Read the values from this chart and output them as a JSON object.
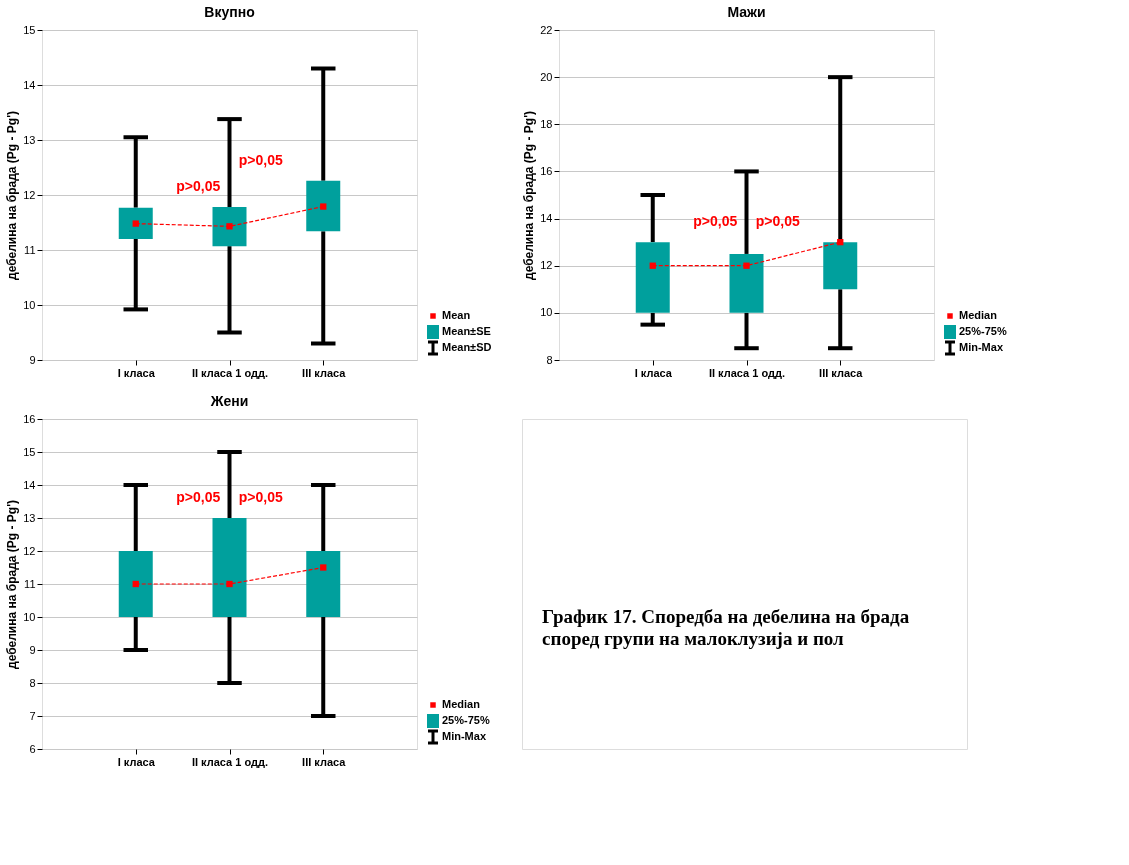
{
  "chart_data": [
    {
      "type": "box",
      "title": "Вкупно",
      "ylabel": "дебелина на брада (Pg - Pg')",
      "categories": [
        "I класа",
        "II класа 1 одд.",
        "III класа"
      ],
      "ylim": [
        9,
        15
      ],
      "yticks": [
        9,
        10,
        11,
        12,
        13,
        14,
        15
      ],
      "grid": "y",
      "legend": "bottom right",
      "series": [
        {
          "type": "box",
          "name": "Mean±SE",
          "color": "#00a09d",
          "boxes": [
            {
              "low": 9.92,
              "q1": 11.2,
              "median": 11.48,
              "q3": 11.77,
              "high": 13.05
            },
            {
              "low": 9.5,
              "q1": 11.07,
              "median": 11.43,
              "q3": 11.78,
              "high": 13.38
            },
            {
              "low": 9.3,
              "q1": 11.34,
              "median": 11.79,
              "q3": 12.26,
              "high": 14.3
            }
          ]
        },
        {
          "type": "line",
          "name": "Mean",
          "color": "#ff0000",
          "line_style": "dashed",
          "x": [
            "I класа",
            "II класа 1 одд.",
            "III класа"
          ],
          "values": [
            11.48,
            11.43,
            11.79
          ]
        }
      ],
      "annotations": [
        "p>0,05",
        "p>0,05",
        "Mean±SD"
      ]
    },
    {
      "type": "box",
      "title": "Мажи",
      "ylabel": "дебелина на брада (Pg - Pg')",
      "categories": [
        "I класа",
        "II класа 1 одд.",
        "III класа"
      ],
      "ylim": [
        8,
        22
      ],
      "yticks": [
        8,
        10,
        12,
        14,
        16,
        18,
        20,
        22
      ],
      "grid": "y",
      "legend": "bottom right",
      "series": [
        {
          "type": "box",
          "name": "25%-75%",
          "color": "#00a09d",
          "boxes": [
            {
              "low": 9.5,
              "q1": 10,
              "median": 12,
              "q3": 13,
              "high": 15
            },
            {
              "low": 8.5,
              "q1": 10,
              "median": 12,
              "q3": 12.5,
              "high": 16
            },
            {
              "low": 8.5,
              "q1": 11,
              "median": 13,
              "q3": 13,
              "high": 20
            }
          ]
        },
        {
          "type": "line",
          "name": "Median",
          "color": "#ff0000",
          "line_style": "dashed",
          "x": [
            "I класа",
            "II класа 1 одд.",
            "III класа"
          ],
          "values": [
            12,
            12,
            13
          ]
        }
      ],
      "annotations": [
        "p>0,05",
        "p>0,05",
        "Min-Max"
      ]
    },
    {
      "type": "box",
      "title": "Жени",
      "ylabel": "дебелина на брада (Pg - Pg')",
      "categories": [
        "I класа",
        "II класа 1 одд.",
        "III класа"
      ],
      "ylim": [
        6,
        16
      ],
      "yticks": [
        6,
        7,
        8,
        9,
        10,
        11,
        12,
        13,
        14,
        15,
        16
      ],
      "grid": "y",
      "legend": "bottom right",
      "series": [
        {
          "type": "box",
          "name": "25%-75%",
          "color": "#00a09d",
          "boxes": [
            {
              "low": 9,
              "q1": 10,
              "median": 11,
              "q3": 12,
              "high": 14
            },
            {
              "low": 8,
              "q1": 10,
              "median": 11,
              "q3": 13,
              "high": 15
            },
            {
              "low": 7,
              "q1": 10,
              "median": 11.5,
              "q3": 12,
              "high": 14
            }
          ]
        },
        {
          "type": "line",
          "name": "Median",
          "color": "#ff0000",
          "line_style": "dashed",
          "x": [
            "I класа",
            "II класа 1 одд.",
            "III класа"
          ],
          "values": [
            11,
            11,
            11.5
          ]
        }
      ],
      "annotations": [
        "p>0,05",
        "p>0,05",
        "Min-Max"
      ]
    },
    {
      "type": "other",
      "title": "График 17. Споредба на дебелина на брада според групи на малоклузија и пол"
    }
  ]
}
